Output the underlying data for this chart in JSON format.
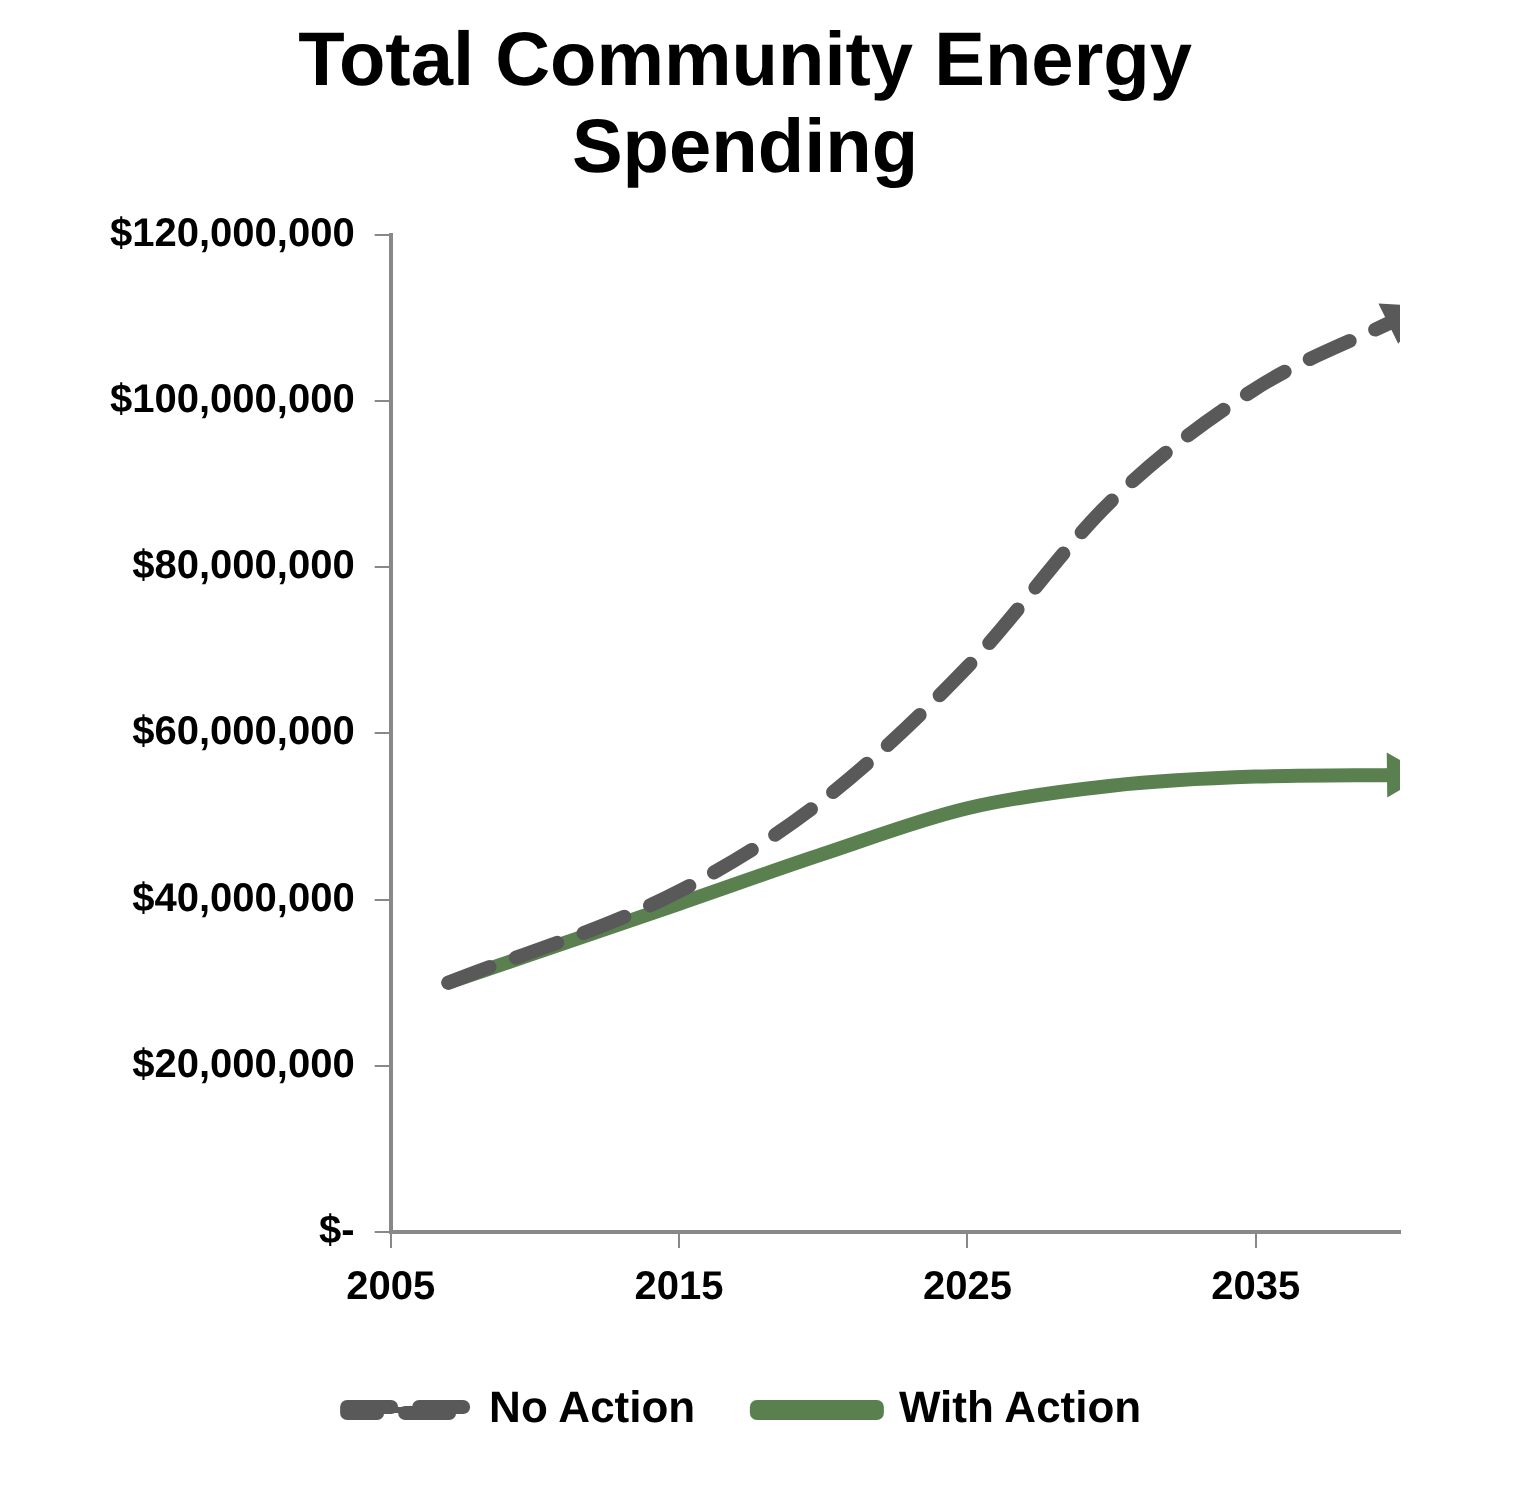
{
  "chart_data": {
    "type": "line",
    "title": "Total Community Energy Spending",
    "x": [
      2007,
      2015,
      2020,
      2025,
      2030,
      2035,
      2040
    ],
    "series": [
      {
        "name": "No Action",
        "color": "#595959",
        "line_style": "dashed",
        "values": [
          30000000,
          41000000,
          52000000,
          68000000,
          88000000,
          101500000,
          110000000
        ]
      },
      {
        "name": "With Action",
        "color": "#5a8050",
        "line_style": "solid",
        "values": [
          30000000,
          39500000,
          45500000,
          51000000,
          53700000,
          54800000,
          55000000
        ]
      }
    ],
    "xlim": [
      2005,
      2040
    ],
    "xticks": [
      2005,
      2015,
      2025,
      2035
    ],
    "ylim": [
      0,
      120000000
    ],
    "yticks": [
      {
        "value": 0,
        "label": "$-"
      },
      {
        "value": 20000000,
        "label": "$20,000,000"
      },
      {
        "value": 40000000,
        "label": "$40,000,000"
      },
      {
        "value": 60000000,
        "label": "$60,000,000"
      },
      {
        "value": 80000000,
        "label": "$80,000,000"
      },
      {
        "value": 100000000,
        "label": "$100,000,000"
      },
      {
        "value": 120000000,
        "label": "$120,000,000"
      }
    ],
    "grid": false,
    "legend": "bottom",
    "marker": "none"
  }
}
